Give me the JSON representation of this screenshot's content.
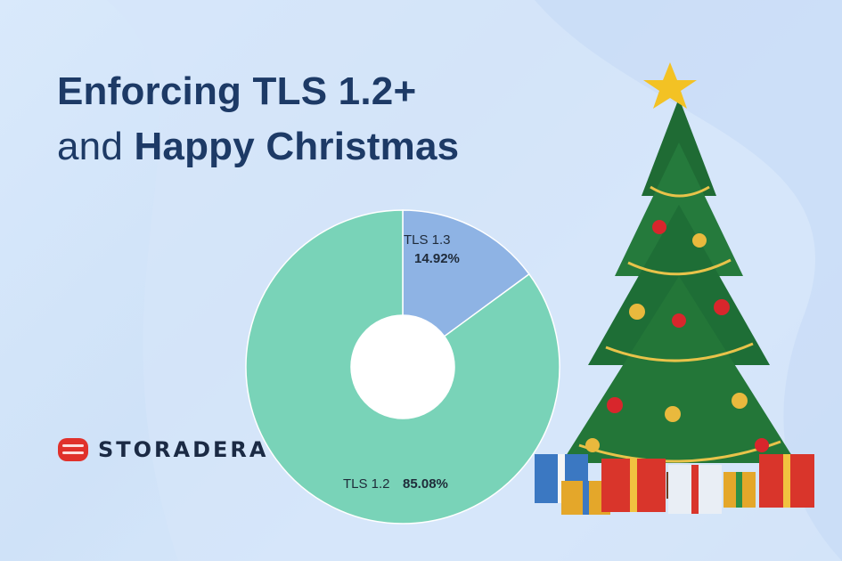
{
  "headline": {
    "line1": "Enforcing TLS 1.2+",
    "line2_prefix": "and ",
    "line2_bold": "Happy Christmas"
  },
  "brand": {
    "name": "STORADERA",
    "color": "#e0312b"
  },
  "colors": {
    "tls12": "#79d3b8",
    "tls13": "#8eb3e4",
    "text": "#1d3a66"
  },
  "icons": [
    "storadera-logo-icon",
    "christmas-tree-icon",
    "star-icon",
    "gift-icon"
  ],
  "chart_data": {
    "type": "pie",
    "donut": true,
    "categories": [
      "TLS 1.3",
      "TLS 1.2"
    ],
    "values": [
      14.92,
      85.08
    ],
    "value_labels": [
      "14.92%",
      "85.08%"
    ],
    "title": ""
  }
}
